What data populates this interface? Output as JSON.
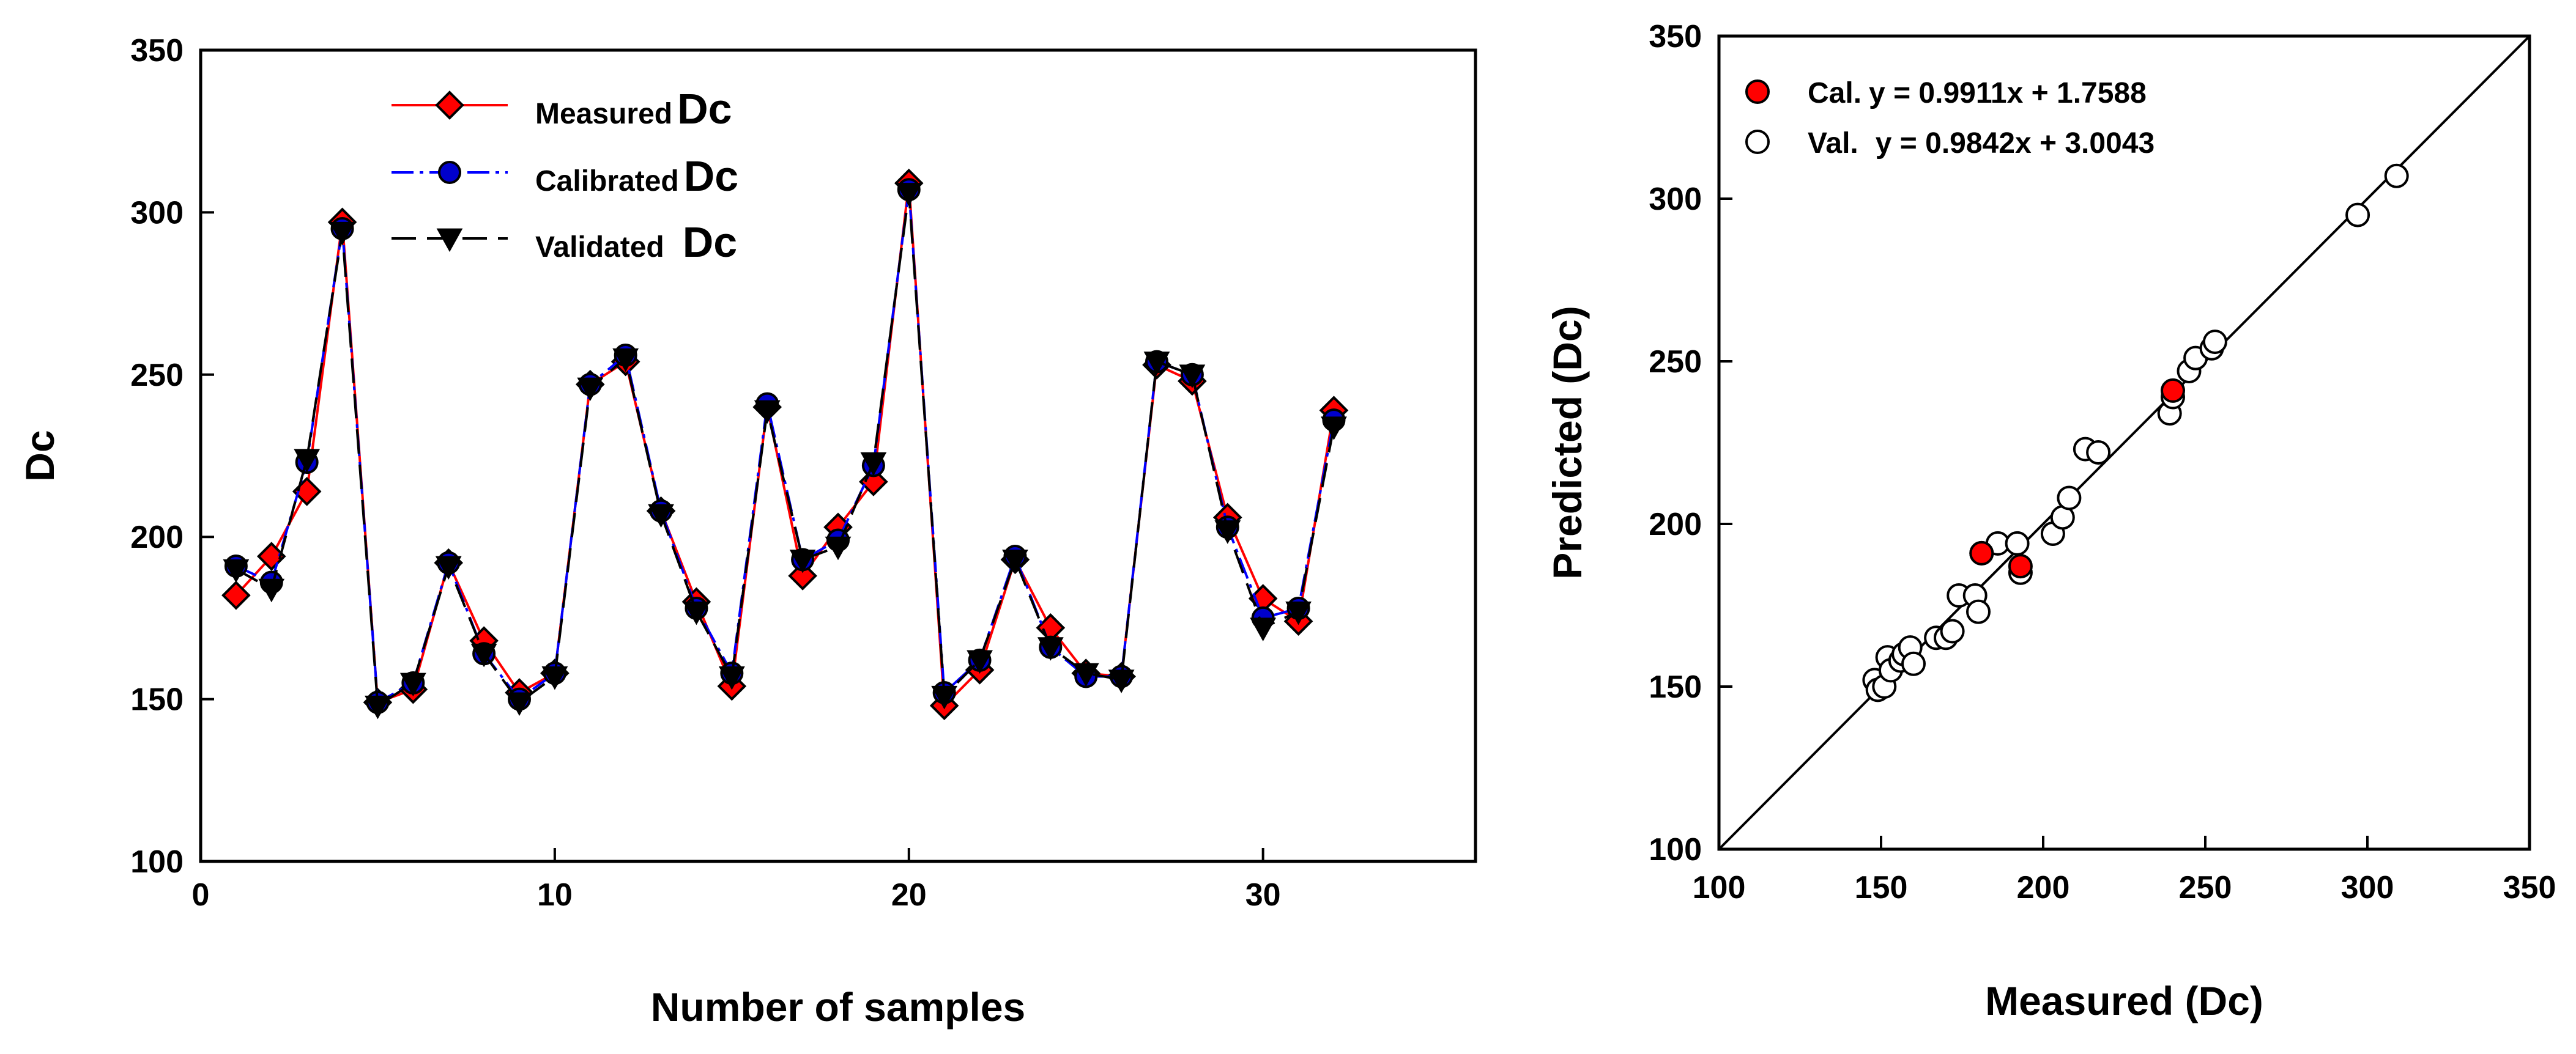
{
  "chart_data": [
    {
      "type": "line",
      "xlabel": "Number of samples",
      "ylabel": "Dc",
      "xlim": [
        0,
        36
      ],
      "ylim": [
        100,
        350
      ],
      "xticks": [
        0,
        10,
        20,
        30
      ],
      "yticks": [
        100,
        150,
        200,
        250,
        300,
        350
      ],
      "x": [
        1,
        2,
        3,
        4,
        5,
        6,
        7,
        8,
        9,
        10,
        11,
        12,
        13,
        14,
        15,
        16,
        17,
        18,
        19,
        20,
        21,
        22,
        23,
        24,
        25,
        26,
        27,
        28,
        29,
        30,
        31,
        32
      ],
      "series": [
        {
          "name": "Measured",
          "suffix": "Dc",
          "color": "#ff0000",
          "marker": "diamond",
          "marker_color": "#ff0000",
          "dash": "solid",
          "values": [
            182,
            194,
            214,
            297,
            149,
            153,
            192,
            168,
            152,
            158,
            247,
            254,
            208,
            180,
            154,
            240,
            188,
            203,
            217,
            309,
            148,
            159,
            193,
            172,
            158,
            157,
            253,
            248,
            206,
            181,
            174,
            239
          ]
        },
        {
          "name": "Calibrated",
          "suffix": "Dc",
          "color": "#0000ff",
          "marker": "circle",
          "marker_color": "#0000cc",
          "dash": "dashdot",
          "values": [
            191,
            186,
            223,
            295,
            149,
            155,
            192,
            164,
            150,
            158,
            247,
            256,
            208,
            178,
            158,
            241,
            193,
            199,
            222,
            307,
            152,
            162,
            194,
            166,
            157,
            157,
            254,
            250,
            203,
            175,
            178,
            236
          ]
        },
        {
          "name": "Validated",
          "suffix": "Dc",
          "color": "#000000",
          "marker": "triangle-down",
          "marker_color": "#000000",
          "dash": "dash",
          "values": [
            190,
            184,
            224,
            294,
            148,
            155,
            191,
            164,
            149,
            157,
            246,
            255,
            207,
            177,
            157,
            239,
            193,
            197,
            223,
            306,
            151,
            162,
            193,
            166,
            158,
            156,
            254,
            250,
            202,
            172,
            177,
            234
          ]
        }
      ]
    },
    {
      "type": "scatter",
      "xlabel": "Measured (Dc)",
      "ylabel": "Predicted (Dc)",
      "xlim": [
        100,
        350
      ],
      "ylim": [
        100,
        350
      ],
      "xticks": [
        100,
        150,
        200,
        250,
        300,
        350
      ],
      "yticks": [
        100,
        150,
        200,
        250,
        300,
        350
      ],
      "identity_line": true,
      "series": [
        {
          "name": "Cal.",
          "equation": "y = 0.9911x + 1.7588",
          "fill": "#ff0000",
          "points": [
            [
              240,
              241
            ],
            [
              193,
              187
            ],
            [
              181,
              191
            ]
          ]
        },
        {
          "name": "Val.",
          "equation": "y = 0.9842x + 3.0043",
          "fill": "#ffffff",
          "points": [
            [
              148,
              152
            ],
            [
              149,
              149
            ],
            [
              151,
              150
            ],
            [
              152,
              159
            ],
            [
              153,
              155
            ],
            [
              156,
              158
            ],
            [
              157,
              160
            ],
            [
              159,
              162
            ],
            [
              160,
              157
            ],
            [
              167,
              165
            ],
            [
              170,
              165
            ],
            [
              172,
              167
            ],
            [
              174,
              178
            ],
            [
              179,
              178
            ],
            [
              180,
              173
            ],
            [
              181,
              191
            ],
            [
              186,
              194
            ],
            [
              192,
              194
            ],
            [
              193,
              185
            ],
            [
              203,
              197
            ],
            [
              206,
              202
            ],
            [
              208,
              208
            ],
            [
              213,
              223
            ],
            [
              217,
              222
            ],
            [
              239,
              234
            ],
            [
              240,
              239
            ],
            [
              245,
              247
            ],
            [
              247,
              251
            ],
            [
              252,
              254
            ],
            [
              253,
              256
            ],
            [
              297,
              295
            ],
            [
              309,
              307
            ]
          ]
        }
      ]
    }
  ]
}
